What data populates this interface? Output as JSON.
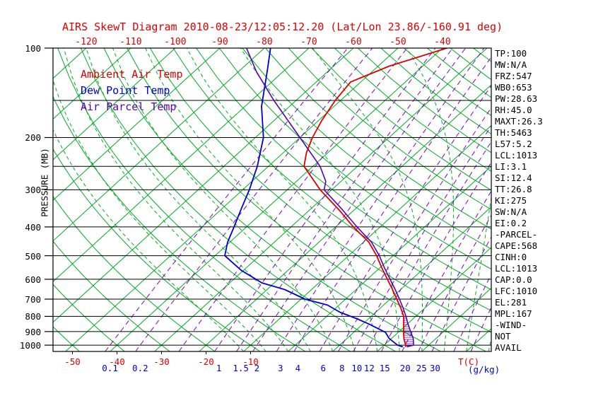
{
  "title": "AIRS SkewT Diagram 2010-08-23/12:05:12.20 (Lat/Lon 23.86/-160.91 deg)",
  "legend": {
    "ambient": "Ambient Air Temp",
    "dew": "Dew Point Temp",
    "parcel": "Air Parcel Temp"
  },
  "axes": {
    "pressure_label": "PRESSURE (MB)",
    "pressure_ticks": [
      100,
      200,
      300,
      400,
      500,
      600,
      700,
      800,
      900,
      1000
    ],
    "top_temp_ticks": [
      -120,
      -110,
      -100,
      -90,
      -80,
      -70,
      -60,
      -50,
      -40
    ],
    "bottom_temp_ticks": [
      -50,
      -40,
      -30,
      -20,
      -10
    ],
    "mixing_ratio_ticks": [
      0.1,
      0.2,
      1,
      1.5,
      2,
      3,
      4,
      6,
      8,
      10,
      12,
      15,
      20,
      25,
      30
    ],
    "temp_unit_label": "T(C)",
    "mixing_unit_label": "(g/kg)"
  },
  "stats": [
    "TP:100",
    "MW:N/A",
    "FRZ:547",
    "WB0:653",
    "PW:28.63",
    "RH:45.0",
    "MAXT:26.3",
    "TH:5463",
    "L57:5.2",
    "LCL:1013",
    "LI:3.1",
    "SI:12.4",
    "TT:26.8",
    "KI:275",
    "SW:N/A",
    "EI:0.2",
    "-PARCEL-",
    "CAPE:568",
    "CINH:0",
    "LCL:1013",
    "CAP:0.0",
    "LFC:1010",
    "EL:281",
    "MPL:167",
    "-WIND-",
    "NOT",
    "AVAIL"
  ],
  "colors": {
    "red": "#dd0000",
    "blue": "#0000cc",
    "green": "#00aa22",
    "purple": "#7a00cc",
    "parcel": "#5a00b4",
    "black": "#000000"
  },
  "chart_data": {
    "type": "line",
    "title": "AIRS SkewT Diagram 2010-08-23/12:05:12.20",
    "xlabel": "T(C)",
    "ylabel": "PRESSURE (MB)",
    "x_axis": "temperature_C_skewed_45deg",
    "y_axis": "pressure_mb_log_scale",
    "pressure_range": [
      100,
      1050
    ],
    "grid": {
      "isotherms": {
        "min": -120,
        "max": 40,
        "step": 10
      },
      "dry_adiabats": {
        "min": -60,
        "max": 190,
        "step": 10
      },
      "moist_adiabat_surface_temps": [
        -10,
        -5,
        0,
        5,
        10,
        15,
        20,
        25,
        30,
        35,
        40,
        45
      ],
      "mixing_ratio_lines": [
        0.1,
        0.2,
        0.5,
        1,
        1.5,
        2,
        3,
        4,
        6,
        8,
        10,
        12,
        15,
        20,
        25,
        30,
        40,
        50
      ],
      "isobars": [
        100,
        150,
        200,
        250,
        300,
        400,
        500,
        600,
        700,
        800,
        900,
        1000
      ]
    },
    "series": [
      {
        "id": "ambient",
        "name": "Ambient Air Temp",
        "color": "#dd0000",
        "width": 1.8,
        "points": [
          [
            1013,
            25.3
          ],
          [
            1000,
            24.8
          ],
          [
            950,
            22.8
          ],
          [
            900,
            21.0
          ],
          [
            850,
            19.2
          ],
          [
            800,
            17.3
          ],
          [
            750,
            14.6
          ],
          [
            700,
            11.5
          ],
          [
            650,
            8.2
          ],
          [
            600,
            4.5
          ],
          [
            550,
            0.5
          ],
          [
            500,
            -3.7
          ],
          [
            450,
            -8.8
          ],
          [
            400,
            -16.0
          ],
          [
            350,
            -23.5
          ],
          [
            300,
            -32.6
          ],
          [
            250,
            -42.0
          ],
          [
            225,
            -44.8
          ],
          [
            200,
            -47.2
          ],
          [
            175,
            -49.3
          ],
          [
            150,
            -51.2
          ],
          [
            130,
            -52.3
          ],
          [
            115,
            -47.5
          ],
          [
            100,
            -39.0
          ]
        ]
      },
      {
        "id": "dew",
        "name": "Dew Point Temp",
        "color": "#0000cc",
        "width": 1.8,
        "points": [
          [
            1013,
            24.6
          ],
          [
            1000,
            23.0
          ],
          [
            950,
            19.5
          ],
          [
            905,
            17.1
          ],
          [
            850,
            11.5
          ],
          [
            814,
            7.3
          ],
          [
            775,
            2.0
          ],
          [
            733,
            -2.6
          ],
          [
            700,
            -9.1
          ],
          [
            650,
            -16.0
          ],
          [
            617,
            -22.8
          ],
          [
            560,
            -30.5
          ],
          [
            500,
            -37.8
          ],
          [
            450,
            -40.5
          ],
          [
            400,
            -42.8
          ],
          [
            350,
            -45.5
          ],
          [
            300,
            -48.5
          ],
          [
            250,
            -52.5
          ],
          [
            200,
            -58.2
          ],
          [
            157,
            -66.3
          ],
          [
            119,
            -73.8
          ],
          [
            100,
            -78.6
          ]
        ]
      },
      {
        "id": "parcel",
        "name": "Air Parcel Temp",
        "color": "#5a00b4",
        "width": 1.6,
        "points": [
          [
            1013,
            25.5
          ],
          [
            1000,
            26.6
          ],
          [
            950,
            24.9
          ],
          [
            900,
            22.6
          ],
          [
            850,
            20.2
          ],
          [
            800,
            17.8
          ],
          [
            750,
            15.1
          ],
          [
            700,
            12.1
          ],
          [
            650,
            8.8
          ],
          [
            600,
            5.1
          ],
          [
            550,
            1.1
          ],
          [
            500,
            -3.1
          ],
          [
            450,
            -8.2
          ],
          [
            400,
            -15.2
          ],
          [
            350,
            -22.7
          ],
          [
            300,
            -31.7
          ],
          [
            281,
            -33.4
          ],
          [
            250,
            -38.4
          ],
          [
            200,
            -50.0
          ],
          [
            150,
            -65.0
          ],
          [
            120,
            -76.0
          ],
          [
            100,
            -84.0
          ]
        ]
      }
    ],
    "cape_hatch": {
      "between": [
        "parcel",
        "ambient"
      ],
      "pressure_range": [
        1013,
        800
      ]
    }
  }
}
